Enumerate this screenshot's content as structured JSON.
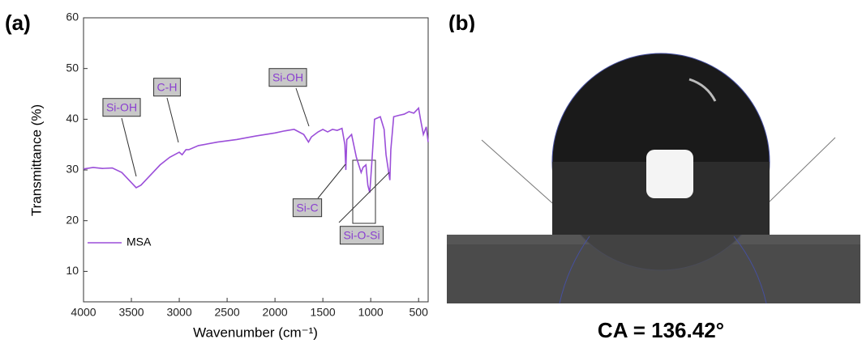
{
  "panel_labels": [
    "(a)",
    "(b)"
  ],
  "photo": {
    "caption": "CA = 136.42°"
  },
  "chart_data": {
    "type": "line",
    "xlabel": "Wavenumber (cm⁻¹)",
    "ylabel": "Transmittance (%)",
    "x": [
      4000,
      3900,
      3800,
      3700,
      3600,
      3500,
      3450,
      3400,
      3300,
      3200,
      3100,
      3000,
      2970,
      2930,
      2900,
      2800,
      2600,
      2400,
      2200,
      2000,
      1900,
      1800,
      1700,
      1650,
      1620,
      1550,
      1500,
      1450,
      1400,
      1350,
      1300,
      1270,
      1260,
      1250,
      1200,
      1150,
      1100,
      1080,
      1050,
      1030,
      1010,
      990,
      960,
      900,
      860,
      840,
      800,
      790,
      760,
      700,
      650,
      600,
      550,
      500,
      480,
      450,
      420,
      400
    ],
    "series": [
      {
        "name": "MSA",
        "color": "#9b4fd9",
        "values": [
          30.2,
          30.5,
          30.3,
          30.4,
          29.5,
          27.5,
          26.5,
          27,
          29,
          31,
          32.5,
          33.5,
          33,
          34,
          34,
          34.8,
          35.5,
          36,
          36.7,
          37.3,
          37.7,
          38,
          37,
          35.5,
          36.5,
          37.5,
          38,
          37.5,
          38,
          37.8,
          38.2,
          35,
          30,
          36,
          37,
          32.5,
          29.5,
          30.5,
          31,
          27,
          25.5,
          31,
          40,
          40.5,
          38,
          33,
          28,
          34,
          40.5,
          40.8,
          41,
          41.5,
          41.2,
          42.2,
          40,
          37,
          38.5,
          35.5
        ]
      }
    ],
    "xlim": [
      4000,
      400
    ],
    "ylim": [
      4,
      60
    ],
    "xticks": [
      4000,
      3500,
      3000,
      2500,
      2000,
      1500,
      1000,
      500
    ],
    "yticks": [
      10,
      20,
      30,
      40,
      50,
      60
    ],
    "legend": "upper left",
    "annotations": [
      {
        "text": "Si-OH"
      },
      {
        "text": "C-H"
      },
      {
        "text": "Si-OH"
      },
      {
        "text": "Si-C"
      },
      {
        "text": "Si-O-Si"
      }
    ]
  }
}
